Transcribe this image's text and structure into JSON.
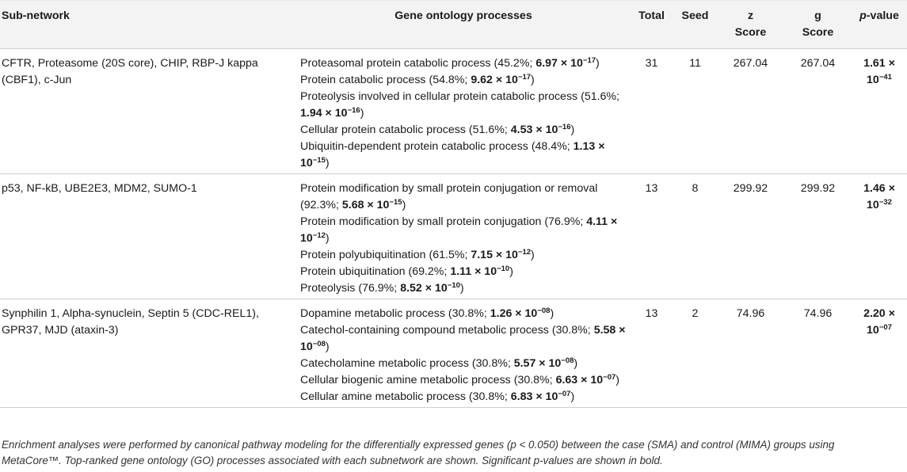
{
  "headers": {
    "subnetwork": "Sub-network",
    "go": "Gene ontology processes",
    "total": "Total",
    "seed": "Seed",
    "z1": "z",
    "z2": "Score",
    "g1": "g",
    "g2": "Score",
    "p_italic": "p",
    "p_rest": "-value"
  },
  "rows": [
    {
      "subnetwork": "CFTR, Proteasome (20S core), CHIP, RBP-J kappa (CBF1), c-Jun",
      "total": "31",
      "seed": "11",
      "z": "267.04",
      "g": "267.04",
      "p_mant": "1.61 ×",
      "p_base": "10",
      "p_exp": "−41",
      "processes": [
        {
          "name": "Proteasomal protein catabolic process",
          "pct": "45.2%",
          "mant": "6.97 × 10",
          "exp": "−17"
        },
        {
          "name": "Protein catabolic process",
          "pct": "54.8%",
          "mant": "9.62 × 10",
          "exp": "−17"
        },
        {
          "name": "Proteolysis involved in cellular protein catabolic process",
          "pct": "51.6%",
          "mant": "1.94 × 10",
          "exp": "−16"
        },
        {
          "name": "Cellular protein catabolic process",
          "pct": "51.6%",
          "mant": "4.53 × 10",
          "exp": "−16"
        },
        {
          "name": "Ubiquitin-dependent protein catabolic process",
          "pct": "48.4%",
          "mant": "1.13 × 10",
          "exp": "−15"
        }
      ]
    },
    {
      "subnetwork": "p53, NF-kB, UBE2E3, MDM2, SUMO-1",
      "total": "13",
      "seed": "8",
      "z": "299.92",
      "g": "299.92",
      "p_mant": "1.46 ×",
      "p_base": "10",
      "p_exp": "−32",
      "processes": [
        {
          "name": "Protein modification by small protein conjugation or removal",
          "pct": "92.3%",
          "mant": "5.68 × 10",
          "exp": "−15"
        },
        {
          "name": "Protein modification by small protein conjugation",
          "pct": "76.9%",
          "mant": "4.11 × 10",
          "exp": "−12"
        },
        {
          "name": "Protein polyubiquitination",
          "pct": "61.5%",
          "mant": "7.15 × 10",
          "exp": "−12"
        },
        {
          "name": "Protein ubiquitination",
          "pct": "69.2%",
          "mant": "1.11 × 10",
          "exp": "−10"
        },
        {
          "name": "Proteolysis",
          "pct": "76.9%",
          "mant": "8.52 × 10",
          "exp": "−10"
        }
      ]
    },
    {
      "subnetwork": "Synphilin 1, Alpha-synuclein, Septin 5 (CDC-REL1), GPR37, MJD (ataxin-3)",
      "total": "13",
      "seed": "2",
      "z": "74.96",
      "g": "74.96",
      "p_mant": "2.20 ×",
      "p_base": "10",
      "p_exp": "−07",
      "processes": [
        {
          "name": "Dopamine metabolic process",
          "pct": "30.8%",
          "mant": "1.26 × 10",
          "exp": "−08"
        },
        {
          "name": "Catechol-containing compound metabolic process",
          "pct": "30.8%",
          "mant": "5.58 × 10",
          "exp": "−08"
        },
        {
          "name": "Catecholamine metabolic process",
          "pct": "30.8%",
          "mant": "5.57 × 10",
          "exp": "−08"
        },
        {
          "name": "Cellular biogenic amine metabolic process",
          "pct": "30.8%",
          "mant": "6.63 × 10",
          "exp": "−07"
        },
        {
          "name": "Cellular amine metabolic process",
          "pct": "30.8%",
          "mant": "6.83 × 10",
          "exp": "−07"
        }
      ]
    }
  ],
  "footnote": "Enrichment analyses were performed by canonical pathway modeling for the differentially expressed genes (p < 0.050) between the case (SMA) and control (MIMA) groups using MetaCore™. Top-ranked gene ontology (GO) processes associated with each subnetwork are shown. Significant p-values are shown in bold."
}
